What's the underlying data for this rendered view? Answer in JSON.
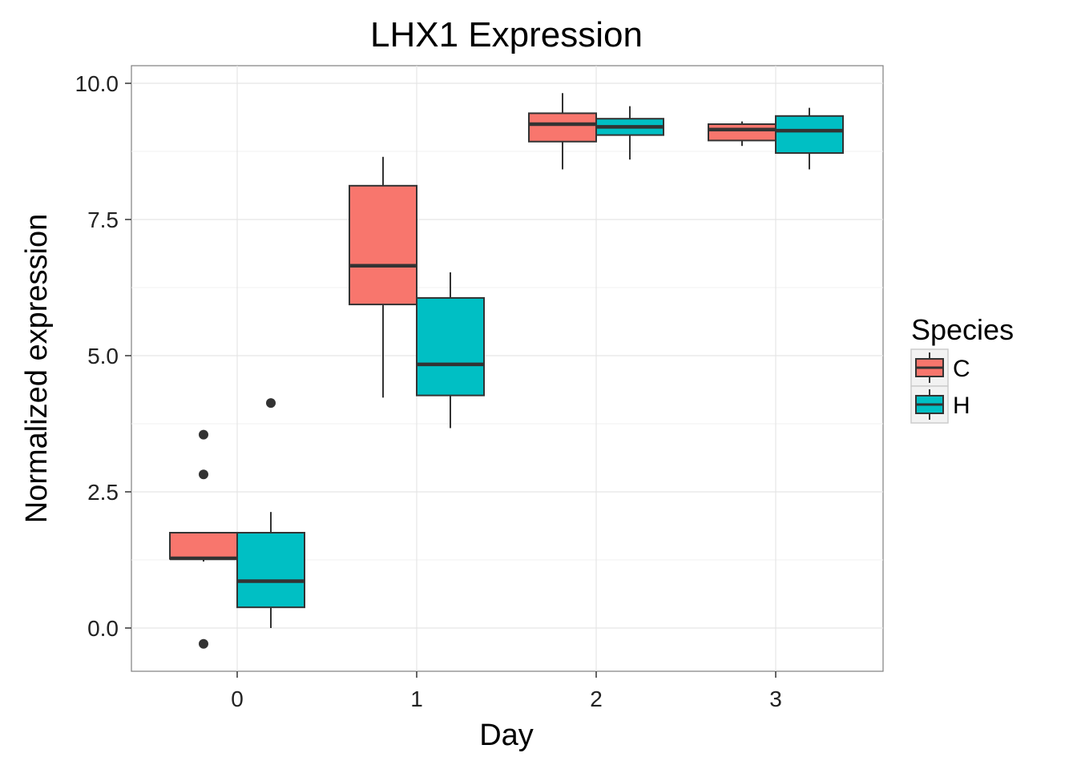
{
  "chart_data": {
    "type": "boxplot",
    "title": "LHX1 Expression",
    "xlabel": "Day",
    "ylabel": "Normalized expression",
    "categories": [
      "0",
      "1",
      "2",
      "3"
    ],
    "ylim": [
      -0.75,
      10.4
    ],
    "yticks": [
      0.0,
      2.5,
      5.0,
      7.5,
      10.0
    ],
    "ytick_labels": [
      "0.0",
      "2.5",
      "5.0",
      "7.5",
      "10.0"
    ],
    "grid": true,
    "legend": {
      "title": "Species",
      "placement": "right",
      "entries": [
        {
          "label": "C",
          "color": "#F8766D"
        },
        {
          "label": "H",
          "color": "#00BFC4"
        }
      ]
    },
    "series": [
      {
        "name": "C",
        "color": "#F8766D",
        "boxes": [
          {
            "category": "0",
            "whisker_low": 1.22,
            "q1": 1.27,
            "median": 1.28,
            "q3": 1.75,
            "whisker_high": 1.75,
            "outliers": [
              3.55,
              2.82,
              -0.29
            ]
          },
          {
            "category": "1",
            "whisker_low": 4.23,
            "q1": 5.94,
            "median": 6.65,
            "q3": 8.12,
            "whisker_high": 8.65,
            "outliers": []
          },
          {
            "category": "2",
            "whisker_low": 8.42,
            "q1": 8.93,
            "median": 9.25,
            "q3": 9.45,
            "whisker_high": 9.82,
            "outliers": []
          },
          {
            "category": "3",
            "whisker_low": 8.85,
            "q1": 8.95,
            "median": 9.15,
            "q3": 9.25,
            "whisker_high": 9.3,
            "outliers": []
          }
        ]
      },
      {
        "name": "H",
        "color": "#00BFC4",
        "boxes": [
          {
            "category": "0",
            "whisker_low": 0.0,
            "q1": 0.38,
            "median": 0.86,
            "q3": 1.75,
            "whisker_high": 2.13,
            "outliers": [
              4.13
            ]
          },
          {
            "category": "1",
            "whisker_low": 3.67,
            "q1": 4.27,
            "median": 4.84,
            "q3": 6.06,
            "whisker_high": 6.53,
            "outliers": []
          },
          {
            "category": "2",
            "whisker_low": 8.6,
            "q1": 9.05,
            "median": 9.2,
            "q3": 9.35,
            "whisker_high": 9.58,
            "outliers": []
          },
          {
            "category": "3",
            "whisker_low": 8.42,
            "q1": 8.72,
            "median": 9.13,
            "q3": 9.4,
            "whisker_high": 9.55,
            "outliers": []
          }
        ]
      }
    ]
  }
}
